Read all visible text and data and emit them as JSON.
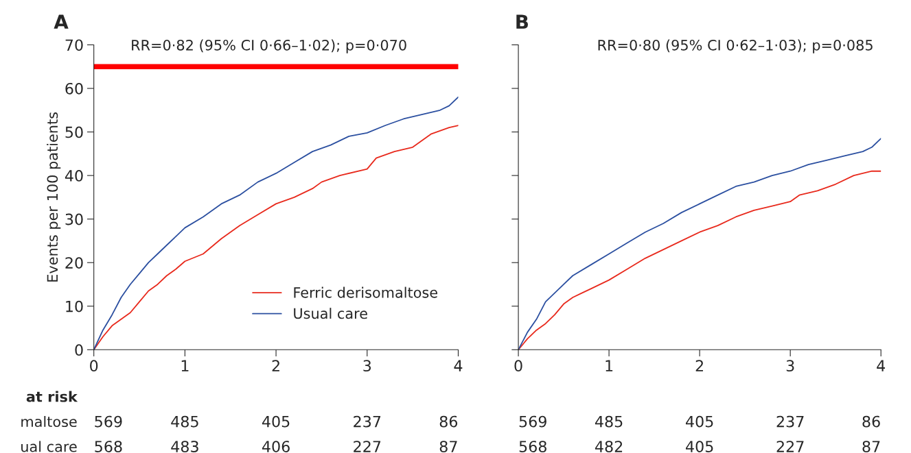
{
  "chart_data": [
    {
      "type": "line",
      "title": "A",
      "ylabel": "Events per 100 patients",
      "xlim": [
        0,
        4
      ],
      "xticks": [
        0,
        1,
        2,
        3,
        4
      ],
      "ylim": [
        0,
        70
      ],
      "yticks": [
        0,
        10,
        20,
        30,
        40,
        50,
        60,
        70
      ],
      "legend": "bottom right",
      "grid": false,
      "bands": [
        {
          "axis": "y",
          "from": 64.4,
          "to": 65.6,
          "color": "#ff0000"
        }
      ],
      "annotations": [
        "RR=0·82 (95% CI 0·66–1·02); p=0·070",
        "at risk",
        "maltose\t569\t485\t405\t237\t86",
        "ual care\t568\t483\t406\t227\t87"
      ],
      "series": [
        {
          "name": "Ferric derisomaltose",
          "color": "#e8291c",
          "x": [
            0,
            0.1,
            0.2,
            0.3,
            0.4,
            0.5,
            0.6,
            0.7,
            0.8,
            0.9,
            1.0,
            1.2,
            1.4,
            1.6,
            1.8,
            2.0,
            2.2,
            2.4,
            2.5,
            2.7,
            3.0,
            3.1,
            3.3,
            3.5,
            3.7,
            3.9,
            4.0
          ],
          "values": [
            0,
            3,
            5.5,
            7,
            8.5,
            11,
            13.5,
            15,
            17,
            18.5,
            20.3,
            22,
            25.5,
            28.5,
            31,
            33.5,
            35,
            37,
            38.5,
            40,
            41.5,
            44,
            45.5,
            46.5,
            49.5,
            51,
            51.5
          ]
        },
        {
          "name": "Usual care",
          "color": "#2b4fa0",
          "x": [
            0,
            0.1,
            0.2,
            0.3,
            0.4,
            0.5,
            0.6,
            0.7,
            0.8,
            0.9,
            1.0,
            1.2,
            1.4,
            1.6,
            1.8,
            2.0,
            2.2,
            2.4,
            2.6,
            2.8,
            3.0,
            3.2,
            3.4,
            3.6,
            3.8,
            3.9,
            4.0
          ],
          "values": [
            0,
            4.5,
            8,
            12,
            15,
            17.5,
            20,
            22,
            24,
            26,
            28,
            30.5,
            33.5,
            35.5,
            38.5,
            40.5,
            43,
            45.5,
            47,
            49,
            49.8,
            51.5,
            53,
            54,
            55,
            56,
            58
          ]
        }
      ]
    },
    {
      "type": "line",
      "title": "B",
      "xlim": [
        0,
        4
      ],
      "xticks": [
        0,
        1,
        2,
        3,
        4
      ],
      "ylim": [
        0,
        70
      ],
      "yticks": [
        0,
        10,
        20,
        30,
        40,
        50,
        60,
        70
      ],
      "tick_labels": "x",
      "grid": false,
      "annotations": [
        "RR=0·80 (95% CI 0·62–1·03); p=0·085",
        "569\t485\t405\t237\t86",
        "568\t482\t405\t227\t87"
      ],
      "series": [
        {
          "color": "#e8291c",
          "x": [
            0,
            0.1,
            0.2,
            0.3,
            0.4,
            0.5,
            0.6,
            0.7,
            0.8,
            1.0,
            1.2,
            1.4,
            1.6,
            1.8,
            2.0,
            2.2,
            2.4,
            2.6,
            2.8,
            3.0,
            3.1,
            3.3,
            3.5,
            3.7,
            3.9,
            4.0
          ],
          "values": [
            0,
            2.5,
            4.5,
            6,
            8,
            10.5,
            12,
            13,
            14,
            16,
            18.5,
            21,
            23,
            25,
            27,
            28.5,
            30.5,
            32,
            33,
            34,
            35.5,
            36.5,
            38,
            40,
            41,
            41
          ]
        },
        {
          "color": "#2b4fa0",
          "x": [
            0,
            0.1,
            0.2,
            0.3,
            0.4,
            0.5,
            0.6,
            0.8,
            1.0,
            1.2,
            1.4,
            1.6,
            1.8,
            2.0,
            2.2,
            2.4,
            2.6,
            2.8,
            3.0,
            3.2,
            3.4,
            3.6,
            3.8,
            3.9,
            4.0
          ],
          "values": [
            0,
            4,
            7,
            11,
            13,
            15,
            17,
            19.5,
            22,
            24.5,
            27,
            29,
            31.5,
            33.5,
            35.5,
            37.5,
            38.5,
            40,
            41,
            42.5,
            43.5,
            44.5,
            45.5,
            46.5,
            48.5
          ]
        }
      ]
    }
  ]
}
